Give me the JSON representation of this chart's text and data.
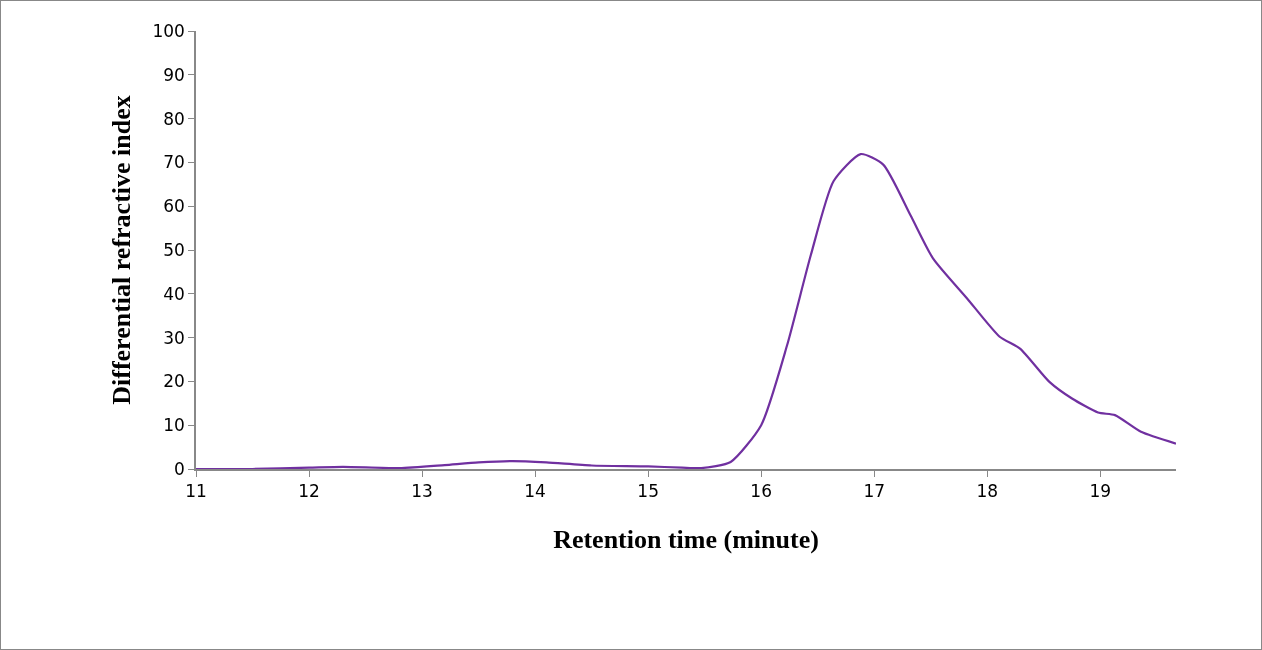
{
  "chart_data": {
    "type": "line",
    "xlabel": "Retention time (minute)",
    "ylabel": "Differential refractive index",
    "x": [
      11,
      11.5,
      12,
      12.3,
      12.8,
      13.2,
      13.5,
      13.8,
      14.1,
      14.5,
      15,
      15.3,
      15.47,
      15.73,
      16.0,
      16.23,
      16.44,
      16.64,
      16.88,
      17.08,
      17.32,
      17.52,
      17.82,
      18.11,
      18.29,
      18.55,
      18.75,
      18.98,
      19.13,
      19.36,
      19.67
    ],
    "series": [
      {
        "color": "#7030a0",
        "values": [
          0,
          0,
          0.3,
          0.5,
          0.2,
          0.9,
          1.5,
          1.8,
          1.5,
          0.8,
          0.6,
          0.3,
          0.2,
          1.6,
          10,
          28.3,
          48.9,
          65.7,
          71.9,
          69.5,
          58,
          48.1,
          39,
          30.2,
          27.5,
          19.9,
          16.1,
          12.9,
          12.3,
          8.5,
          5.8
        ]
      }
    ],
    "xlim": [
      11,
      19.67
    ],
    "xticks": [
      11,
      12,
      13,
      14,
      15,
      16,
      17,
      18,
      19
    ],
    "ylim": [
      0,
      100
    ],
    "yticks": [
      0,
      10,
      20,
      30,
      40,
      50,
      60,
      70,
      80,
      90,
      100
    ],
    "grid": false,
    "marker": "none",
    "line_style": "solid"
  }
}
